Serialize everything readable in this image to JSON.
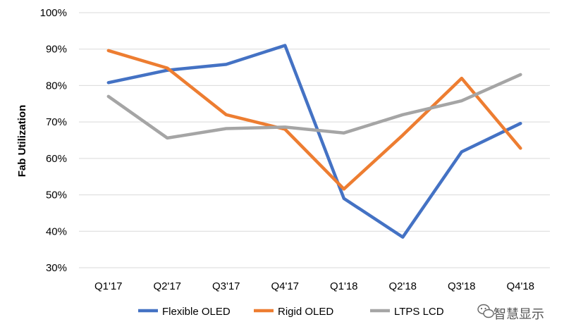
{
  "chart_data": {
    "type": "line",
    "title": "",
    "xlabel": "",
    "ylabel": "Fab Utilization",
    "categories": [
      "Q1'17",
      "Q2'17",
      "Q3'17",
      "Q4'17",
      "Q1'18",
      "Q2'18",
      "Q3'18",
      "Q4'18"
    ],
    "ylim": [
      30,
      100
    ],
    "yticks": [
      30,
      40,
      50,
      60,
      70,
      80,
      90,
      100
    ],
    "ytick_format": "%",
    "grid": true,
    "legend_position": "bottom",
    "series": [
      {
        "name": "Flexible OLED",
        "color": "#4472C4",
        "values": [
          80.8,
          84.2,
          85.8,
          91.0,
          49.0,
          38.4,
          61.8,
          69.6
        ]
      },
      {
        "name": "Rigid OLED",
        "color": "#ED7D31",
        "values": [
          89.6,
          84.8,
          72.0,
          68.0,
          51.6,
          66.4,
          82.0,
          62.8
        ]
      },
      {
        "name": "LTPS LCD",
        "color": "#A5A5A5",
        "values": [
          77.0,
          65.6,
          68.2,
          68.6,
          67.0,
          72.0,
          75.8,
          83.0
        ]
      }
    ]
  },
  "watermark": {
    "text": "智慧显示",
    "icon": "wechat-icon"
  }
}
